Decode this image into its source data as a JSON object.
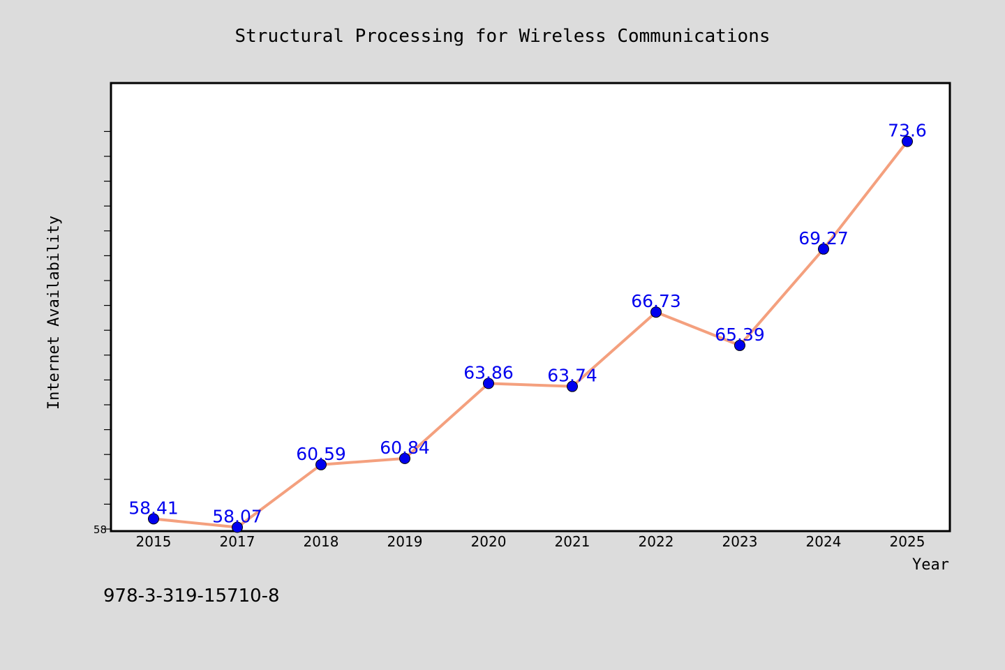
{
  "chart_data": {
    "type": "line",
    "title": "Structural Processing for Wireless Communications",
    "xlabel": "Year",
    "ylabel": "Internet Availability",
    "categories": [
      "2015",
      "2017",
      "2018",
      "2019",
      "2020",
      "2021",
      "2022",
      "2023",
      "2024",
      "2025"
    ],
    "series": [
      {
        "values": [
          58.41,
          58.07,
          60.59,
          60.84,
          63.86,
          63.74,
          66.73,
          65.39,
          69.27,
          73.6
        ],
        "labels": [
          "58.41",
          "58.07",
          "60.59",
          "60.84",
          "63.86",
          "63.74",
          "66.73",
          "65.39",
          "69.27",
          "73.6"
        ],
        "line_color": "#f4a07e",
        "marker_color": "#0000ee",
        "label_color": "#0000ee"
      }
    ],
    "ylim": [
      58,
      74
    ],
    "y_tick_labels": [
      "58"
    ],
    "grid": false,
    "legend": "none"
  },
  "annotation": "978-3-319-15710-8",
  "colors": {
    "background": "#dcdcdc",
    "plot_background": "#ffffff",
    "axis": "#000000"
  }
}
